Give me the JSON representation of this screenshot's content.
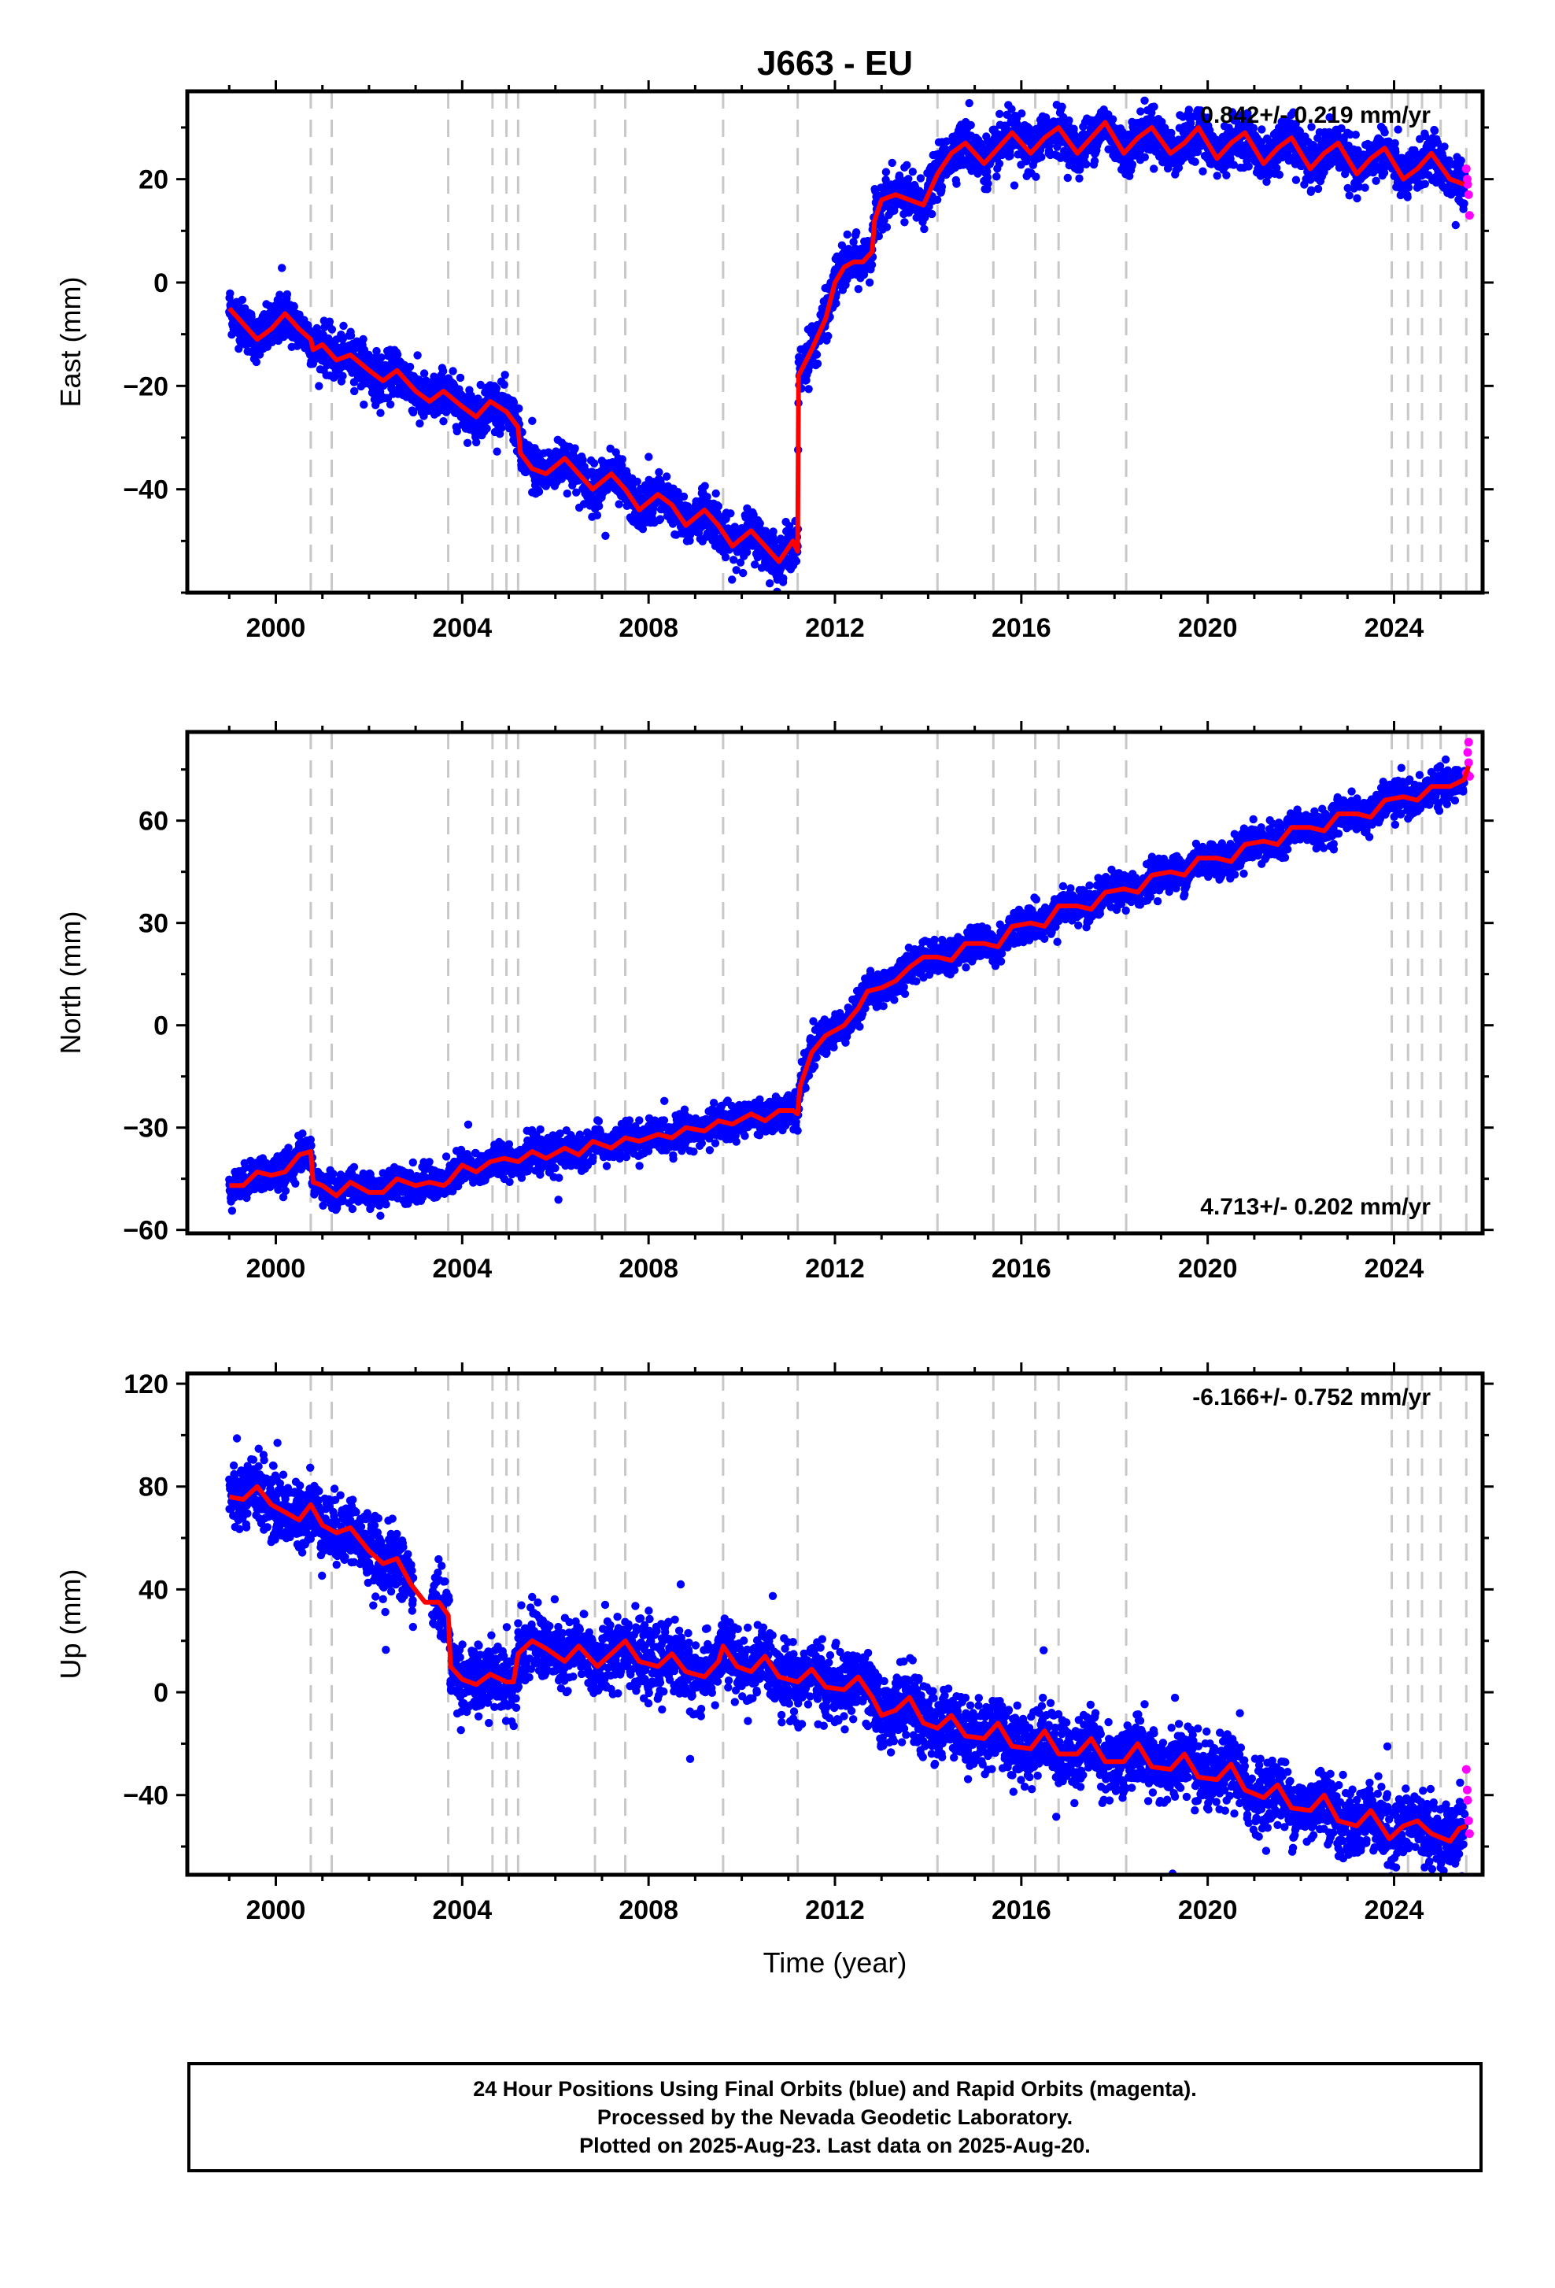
{
  "title": "J663 - EU",
  "xaxis": {
    "label": "Time (year)",
    "range": [
      1998.1,
      2025.9
    ],
    "ticks": [
      2000,
      2004,
      2008,
      2012,
      2016,
      2020,
      2024
    ]
  },
  "colors": {
    "final": "#0000ff",
    "rapid": "#ff00ff",
    "model": "#ff0000",
    "steps": "#c8c8c8",
    "frame": "#000000"
  },
  "caption": [
    "24 Hour Positions Using Final Orbits (blue) and Rapid Orbits (magenta).",
    "Processed by the Nevada Geodetic Laboratory.",
    "Plotted on 2025-Aug-23. Last data on 2025-Aug-20."
  ],
  "chart_data": [
    {
      "type": "scatter",
      "ylabel": "East (mm)",
      "ylim": [
        -60,
        37
      ],
      "yticks": [
        -40,
        -20,
        0,
        20
      ],
      "velocity": "0.842+/- 0.219 mm/yr",
      "velocity_position": "top-right",
      "step_epochs": [
        2000.75,
        2001.2,
        2003.7,
        2004.65,
        2004.95,
        2005.2,
        2006.85,
        2007.5,
        2009.6,
        2011.2,
        2014.2,
        2015.4,
        2016.3,
        2016.8,
        2018.25,
        2023.95,
        2024.3,
        2024.6,
        2025.0,
        2025.55
      ],
      "model": [
        [
          1999.0,
          -5
        ],
        [
          1999.3,
          -8
        ],
        [
          1999.6,
          -11
        ],
        [
          1999.9,
          -9
        ],
        [
          2000.2,
          -6
        ],
        [
          2000.5,
          -9
        ],
        [
          2000.75,
          -11
        ],
        [
          2000.8,
          -13
        ],
        [
          2001.0,
          -12
        ],
        [
          2001.3,
          -15
        ],
        [
          2001.6,
          -14
        ],
        [
          2002.0,
          -17
        ],
        [
          2002.3,
          -19
        ],
        [
          2002.6,
          -17
        ],
        [
          2003.0,
          -21
        ],
        [
          2003.3,
          -23
        ],
        [
          2003.6,
          -21
        ],
        [
          2004.0,
          -24
        ],
        [
          2004.3,
          -26
        ],
        [
          2004.6,
          -23
        ],
        [
          2004.95,
          -25
        ],
        [
          2005.2,
          -28
        ],
        [
          2005.25,
          -33
        ],
        [
          2005.5,
          -36
        ],
        [
          2005.8,
          -37
        ],
        [
          2006.2,
          -34
        ],
        [
          2006.5,
          -37
        ],
        [
          2006.8,
          -40
        ],
        [
          2007.2,
          -37
        ],
        [
          2007.5,
          -40
        ],
        [
          2007.8,
          -44
        ],
        [
          2008.2,
          -41
        ],
        [
          2008.5,
          -43
        ],
        [
          2008.8,
          -47
        ],
        [
          2009.2,
          -44
        ],
        [
          2009.5,
          -47
        ],
        [
          2009.8,
          -51
        ],
        [
          2010.2,
          -48
        ],
        [
          2010.5,
          -51
        ],
        [
          2010.8,
          -54
        ],
        [
          2011.1,
          -50
        ],
        [
          2011.2,
          -52
        ],
        [
          2011.22,
          -18
        ],
        [
          2011.5,
          -13
        ],
        [
          2011.8,
          -7
        ],
        [
          2012.0,
          0
        ],
        [
          2012.2,
          3
        ],
        [
          2012.4,
          4
        ],
        [
          2012.6,
          4
        ],
        [
          2012.8,
          6
        ],
        [
          2012.85,
          12
        ],
        [
          2013.0,
          16
        ],
        [
          2013.3,
          17
        ],
        [
          2013.6,
          16
        ],
        [
          2013.9,
          15
        ],
        [
          2014.2,
          21
        ],
        [
          2014.5,
          25
        ],
        [
          2014.8,
          27
        ],
        [
          2015.2,
          23
        ],
        [
          2015.5,
          26
        ],
        [
          2015.8,
          29
        ],
        [
          2016.2,
          25
        ],
        [
          2016.5,
          28
        ],
        [
          2016.8,
          30
        ],
        [
          2017.2,
          25
        ],
        [
          2017.5,
          28
        ],
        [
          2017.8,
          31
        ],
        [
          2018.2,
          25
        ],
        [
          2018.5,
          28
        ],
        [
          2018.8,
          30
        ],
        [
          2019.2,
          25
        ],
        [
          2019.5,
          27
        ],
        [
          2019.8,
          30
        ],
        [
          2020.2,
          24
        ],
        [
          2020.5,
          27
        ],
        [
          2020.8,
          29
        ],
        [
          2021.2,
          23
        ],
        [
          2021.5,
          26
        ],
        [
          2021.8,
          28
        ],
        [
          2022.2,
          22
        ],
        [
          2022.5,
          25
        ],
        [
          2022.8,
          27
        ],
        [
          2023.2,
          21
        ],
        [
          2023.5,
          24
        ],
        [
          2023.8,
          26
        ],
        [
          2024.2,
          20
        ],
        [
          2024.5,
          22
        ],
        [
          2024.8,
          25
        ],
        [
          2025.2,
          20
        ],
        [
          2025.5,
          19
        ]
      ],
      "noise": 2.2,
      "rapid": [
        [
          2025.55,
          22
        ],
        [
          2025.58,
          19
        ],
        [
          2025.6,
          17
        ],
        [
          2025.62,
          13
        ],
        [
          2025.57,
          20
        ]
      ]
    },
    {
      "type": "scatter",
      "ylabel": "North (mm)",
      "ylim": [
        -61,
        86
      ],
      "yticks": [
        -60,
        -30,
        0,
        30,
        60
      ],
      "velocity": "4.713+/- 0.202 mm/yr",
      "velocity_position": "bottom-right",
      "step_epochs": [
        2000.75,
        2001.2,
        2003.7,
        2004.65,
        2004.95,
        2005.2,
        2006.85,
        2007.5,
        2009.6,
        2011.2,
        2014.2,
        2015.4,
        2016.3,
        2016.8,
        2018.25,
        2023.95,
        2024.3,
        2024.6,
        2025.0,
        2025.55
      ],
      "model": [
        [
          1999.0,
          -47
        ],
        [
          1999.3,
          -47
        ],
        [
          1999.6,
          -43
        ],
        [
          1999.9,
          -44
        ],
        [
          2000.2,
          -43
        ],
        [
          2000.5,
          -38
        ],
        [
          2000.75,
          -37
        ],
        [
          2000.8,
          -46
        ],
        [
          2001.0,
          -47
        ],
        [
          2001.3,
          -50
        ],
        [
          2001.6,
          -46
        ],
        [
          2002.0,
          -49
        ],
        [
          2002.3,
          -49
        ],
        [
          2002.6,
          -45
        ],
        [
          2003.0,
          -47
        ],
        [
          2003.3,
          -46
        ],
        [
          2003.6,
          -47
        ],
        [
          2003.7,
          -46
        ],
        [
          2004.0,
          -41
        ],
        [
          2004.3,
          -43
        ],
        [
          2004.6,
          -40
        ],
        [
          2004.9,
          -39
        ],
        [
          2005.2,
          -40
        ],
        [
          2005.5,
          -37
        ],
        [
          2005.8,
          -39
        ],
        [
          2006.2,
          -36
        ],
        [
          2006.5,
          -38
        ],
        [
          2006.8,
          -34
        ],
        [
          2007.2,
          -36
        ],
        [
          2007.5,
          -33
        ],
        [
          2007.8,
          -34
        ],
        [
          2008.2,
          -32
        ],
        [
          2008.5,
          -33
        ],
        [
          2008.8,
          -30
        ],
        [
          2009.2,
          -31
        ],
        [
          2009.5,
          -28
        ],
        [
          2009.8,
          -29
        ],
        [
          2010.2,
          -26
        ],
        [
          2010.5,
          -28
        ],
        [
          2010.8,
          -25
        ],
        [
          2011.1,
          -25
        ],
        [
          2011.2,
          -26
        ],
        [
          2011.25,
          -18
        ],
        [
          2011.5,
          -8
        ],
        [
          2011.8,
          -3
        ],
        [
          2012.2,
          0
        ],
        [
          2012.5,
          5
        ],
        [
          2012.7,
          10
        ],
        [
          2013.0,
          11
        ],
        [
          2013.3,
          13
        ],
        [
          2013.6,
          17
        ],
        [
          2013.9,
          20
        ],
        [
          2014.2,
          20
        ],
        [
          2014.5,
          19
        ],
        [
          2014.8,
          24
        ],
        [
          2015.2,
          24
        ],
        [
          2015.5,
          23
        ],
        [
          2015.8,
          29
        ],
        [
          2016.2,
          30
        ],
        [
          2016.5,
          29
        ],
        [
          2016.8,
          35
        ],
        [
          2017.2,
          35
        ],
        [
          2017.5,
          34
        ],
        [
          2017.8,
          39
        ],
        [
          2018.2,
          40
        ],
        [
          2018.5,
          39
        ],
        [
          2018.8,
          44
        ],
        [
          2019.2,
          45
        ],
        [
          2019.5,
          44
        ],
        [
          2019.8,
          49
        ],
        [
          2020.2,
          49
        ],
        [
          2020.5,
          48
        ],
        [
          2020.8,
          53
        ],
        [
          2021.2,
          54
        ],
        [
          2021.5,
          53
        ],
        [
          2021.8,
          58
        ],
        [
          2022.2,
          58
        ],
        [
          2022.5,
          57
        ],
        [
          2022.8,
          62
        ],
        [
          2023.2,
          62
        ],
        [
          2023.5,
          61
        ],
        [
          2023.8,
          66
        ],
        [
          2024.2,
          67
        ],
        [
          2024.5,
          66
        ],
        [
          2024.8,
          70
        ],
        [
          2025.2,
          70
        ],
        [
          2025.5,
          72
        ],
        [
          2025.6,
          76
        ]
      ],
      "noise": 2.4,
      "rapid": [
        [
          2025.55,
          74
        ],
        [
          2025.58,
          80
        ],
        [
          2025.6,
          83
        ],
        [
          2025.62,
          73
        ],
        [
          2025.6,
          77
        ]
      ]
    },
    {
      "type": "scatter",
      "ylabel": "Up (mm)",
      "ylim": [
        -71,
        124
      ],
      "yticks": [
        -40,
        0,
        40,
        80,
        120
      ],
      "velocity": "-6.166+/- 0.752 mm/yr",
      "velocity_position": "top-right",
      "step_epochs": [
        2000.75,
        2001.2,
        2003.7,
        2004.65,
        2004.95,
        2005.2,
        2006.85,
        2007.5,
        2009.6,
        2011.2,
        2014.2,
        2015.4,
        2016.3,
        2016.8,
        2018.25,
        2023.95,
        2024.3,
        2024.6,
        2025.0,
        2025.55
      ],
      "model": [
        [
          1999.0,
          76
        ],
        [
          1999.3,
          75
        ],
        [
          1999.6,
          80
        ],
        [
          1999.9,
          73
        ],
        [
          2000.2,
          70
        ],
        [
          2000.5,
          67
        ],
        [
          2000.75,
          73
        ],
        [
          2001.0,
          65
        ],
        [
          2001.3,
          62
        ],
        [
          2001.6,
          64
        ],
        [
          2002.0,
          55
        ],
        [
          2002.3,
          50
        ],
        [
          2002.6,
          52
        ],
        [
          2002.9,
          42
        ],
        [
          2003.2,
          35
        ],
        [
          2003.5,
          35
        ],
        [
          2003.7,
          30
        ],
        [
          2003.75,
          10
        ],
        [
          2004.0,
          5
        ],
        [
          2004.3,
          3
        ],
        [
          2004.6,
          7
        ],
        [
          2004.95,
          4
        ],
        [
          2005.1,
          4
        ],
        [
          2005.2,
          15
        ],
        [
          2005.5,
          20
        ],
        [
          2005.8,
          17
        ],
        [
          2006.2,
          12
        ],
        [
          2006.5,
          18
        ],
        [
          2006.9,
          10
        ],
        [
          2007.2,
          15
        ],
        [
          2007.5,
          20
        ],
        [
          2007.8,
          12
        ],
        [
          2008.2,
          10
        ],
        [
          2008.5,
          15
        ],
        [
          2008.8,
          8
        ],
        [
          2009.2,
          6
        ],
        [
          2009.5,
          12
        ],
        [
          2009.6,
          18
        ],
        [
          2009.9,
          10
        ],
        [
          2010.2,
          8
        ],
        [
          2010.5,
          14
        ],
        [
          2010.8,
          6
        ],
        [
          2011.2,
          4
        ],
        [
          2011.5,
          9
        ],
        [
          2011.8,
          2
        ],
        [
          2012.2,
          1
        ],
        [
          2012.5,
          6
        ],
        [
          2012.8,
          -2
        ],
        [
          2013.0,
          -9
        ],
        [
          2013.3,
          -7
        ],
        [
          2013.6,
          -2
        ],
        [
          2013.9,
          -12
        ],
        [
          2014.2,
          -14
        ],
        [
          2014.5,
          -9
        ],
        [
          2014.8,
          -17
        ],
        [
          2015.2,
          -18
        ],
        [
          2015.5,
          -12
        ],
        [
          2015.8,
          -21
        ],
        [
          2016.2,
          -22
        ],
        [
          2016.5,
          -15
        ],
        [
          2016.8,
          -24
        ],
        [
          2017.2,
          -24
        ],
        [
          2017.5,
          -18
        ],
        [
          2017.8,
          -27
        ],
        [
          2018.2,
          -27
        ],
        [
          2018.5,
          -20
        ],
        [
          2018.8,
          -29
        ],
        [
          2019.2,
          -30
        ],
        [
          2019.5,
          -24
        ],
        [
          2019.8,
          -33
        ],
        [
          2020.2,
          -34
        ],
        [
          2020.5,
          -28
        ],
        [
          2020.8,
          -38
        ],
        [
          2021.2,
          -41
        ],
        [
          2021.5,
          -36
        ],
        [
          2021.8,
          -45
        ],
        [
          2022.2,
          -46
        ],
        [
          2022.5,
          -40
        ],
        [
          2022.8,
          -50
        ],
        [
          2023.2,
          -52
        ],
        [
          2023.5,
          -46
        ],
        [
          2023.9,
          -57
        ],
        [
          2024.2,
          -52
        ],
        [
          2024.5,
          -50
        ],
        [
          2024.8,
          -55
        ],
        [
          2025.2,
          -58
        ],
        [
          2025.4,
          -53
        ],
        [
          2025.55,
          -52
        ]
      ],
      "noise": 6.5,
      "rapid": [
        [
          2025.55,
          -30
        ],
        [
          2025.58,
          -42
        ],
        [
          2025.6,
          -50
        ],
        [
          2025.62,
          -55
        ],
        [
          2025.57,
          -38
        ]
      ]
    }
  ]
}
